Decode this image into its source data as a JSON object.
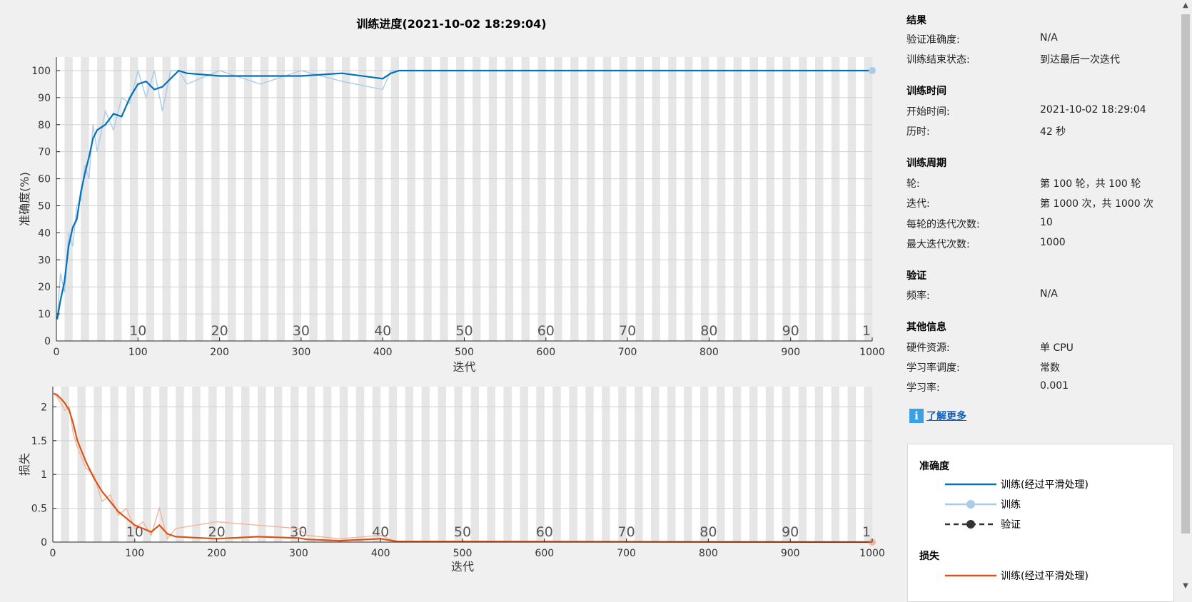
{
  "title": "训练进度(2021-10-02 18:29:04)",
  "panel": {
    "results_heading": "结果",
    "val_acc_label": "验证准确度:",
    "val_acc_value": "N/A",
    "end_state_label": "训练结束状态:",
    "end_state_value": "到达最后一次迭代",
    "time_heading": "训练时间",
    "start_label": "开始时间:",
    "start_value": "2021-10-02 18:29:04",
    "elapsed_label": "历时:",
    "elapsed_value": "42 秒",
    "cycle_heading": "训练周期",
    "epoch_label": "轮:",
    "epoch_value": "第 100 轮，共 100 轮",
    "iter_label": "迭代:",
    "iter_value": "第 1000 次，共 1000 次",
    "iter_per_epoch_label": "每轮的迭代次数:",
    "iter_per_epoch_value": "10",
    "max_iter_label": "最大迭代次数:",
    "max_iter_value": "1000",
    "validation_heading": "验证",
    "freq_label": "频率:",
    "freq_value": "N/A",
    "other_heading": "其他信息",
    "hw_label": "硬件资源:",
    "hw_value": "单 CPU",
    "lr_sched_label": "学习率调度:",
    "lr_sched_value": "常数",
    "lr_label": "学习率:",
    "lr_value": "0.001",
    "learn_more": "了解更多"
  },
  "legend": {
    "acc_heading": "准确度",
    "acc_smoothed": "训练(经过平滑处理)",
    "acc_train": "训练",
    "acc_val": "验证",
    "loss_heading": "损失",
    "loss_smoothed": "训练(经过平滑处理)"
  },
  "colors": {
    "acc_smoothed": "#0072bd",
    "acc_raw": "#a9cde8",
    "loss_smoothed": "#d95319",
    "loss_raw": "#f2b59a",
    "val": "#333333",
    "band": "#e6e6e6"
  },
  "chart_data": [
    {
      "type": "line",
      "xlabel": "迭代",
      "ylabel": "准确度(%)",
      "xlim": [
        0,
        1000
      ],
      "ylim": [
        0,
        105
      ],
      "xticks": [
        0,
        100,
        200,
        300,
        400,
        500,
        600,
        700,
        800,
        900,
        1000
      ],
      "yticks": [
        0,
        10,
        20,
        30,
        40,
        50,
        60,
        70,
        80,
        90,
        100
      ],
      "epoch_labels": [
        "10",
        "20",
        "30",
        "40",
        "50",
        "60",
        "70",
        "80",
        "90",
        "1"
      ],
      "series": [
        {
          "name": "训练(经过平滑处理)",
          "x": [
            1,
            5,
            10,
            15,
            20,
            25,
            30,
            35,
            40,
            45,
            50,
            60,
            70,
            80,
            90,
            100,
            110,
            120,
            130,
            140,
            150,
            160,
            200,
            250,
            300,
            350,
            400,
            410,
            420,
            1000
          ],
          "y": [
            8,
            15,
            22,
            35,
            42,
            45,
            55,
            62,
            68,
            75,
            78,
            80,
            84,
            83,
            90,
            95,
            96,
            93,
            94,
            97,
            100,
            99,
            98,
            98,
            98,
            99,
            97,
            99,
            100,
            100
          ]
        },
        {
          "name": "训练",
          "x": [
            1,
            5,
            10,
            15,
            20,
            25,
            30,
            35,
            40,
            45,
            50,
            60,
            70,
            80,
            90,
            100,
            110,
            120,
            130,
            140,
            150,
            160,
            200,
            250,
            300,
            350,
            400,
            410,
            420,
            1000
          ],
          "y": [
            8,
            25,
            18,
            40,
            35,
            50,
            52,
            65,
            60,
            80,
            70,
            85,
            78,
            90,
            88,
            100,
            90,
            100,
            85,
            100,
            100,
            95,
            100,
            95,
            100,
            96,
            93,
            100,
            100,
            100
          ]
        }
      ]
    },
    {
      "type": "line",
      "xlabel": "迭代",
      "ylabel": "损失",
      "xlim": [
        0,
        1000
      ],
      "ylim": [
        0,
        2.3
      ],
      "xticks": [
        0,
        100,
        200,
        300,
        400,
        500,
        600,
        700,
        800,
        900,
        1000
      ],
      "yticks": [
        0,
        0.5,
        1,
        1.5,
        2
      ],
      "yticklabels": [
        "0",
        "0.5",
        "1",
        "1.5",
        "2"
      ],
      "epoch_labels": [
        "10",
        "20",
        "30",
        "40",
        "50",
        "60",
        "70",
        "80",
        "90",
        "1"
      ],
      "series": [
        {
          "name": "训练(经过平滑处理)",
          "x": [
            1,
            5,
            10,
            15,
            20,
            25,
            30,
            40,
            50,
            60,
            70,
            80,
            90,
            100,
            110,
            120,
            130,
            140,
            150,
            200,
            250,
            300,
            310,
            350,
            400,
            420,
            1000
          ],
          "y": [
            2.2,
            2.18,
            2.12,
            2.05,
            1.95,
            1.75,
            1.5,
            1.2,
            0.95,
            0.75,
            0.6,
            0.45,
            0.35,
            0.25,
            0.2,
            0.15,
            0.25,
            0.12,
            0.08,
            0.05,
            0.08,
            0.06,
            0.04,
            0.02,
            0.05,
            0.01,
            0.0
          ]
        },
        {
          "name": "训练",
          "x": [
            1,
            5,
            10,
            15,
            20,
            25,
            30,
            40,
            50,
            60,
            70,
            80,
            90,
            100,
            110,
            120,
            130,
            140,
            150,
            200,
            250,
            300,
            310,
            350,
            400,
            420,
            1000
          ],
          "y": [
            2.2,
            2.15,
            2.05,
            1.95,
            2.0,
            1.6,
            1.4,
            1.1,
            1.0,
            0.6,
            0.7,
            0.4,
            0.5,
            0.2,
            0.3,
            0.1,
            0.5,
            0.05,
            0.2,
            0.3,
            0.25,
            0.2,
            0.1,
            0.05,
            0.1,
            0.0,
            0.0
          ]
        }
      ]
    }
  ]
}
